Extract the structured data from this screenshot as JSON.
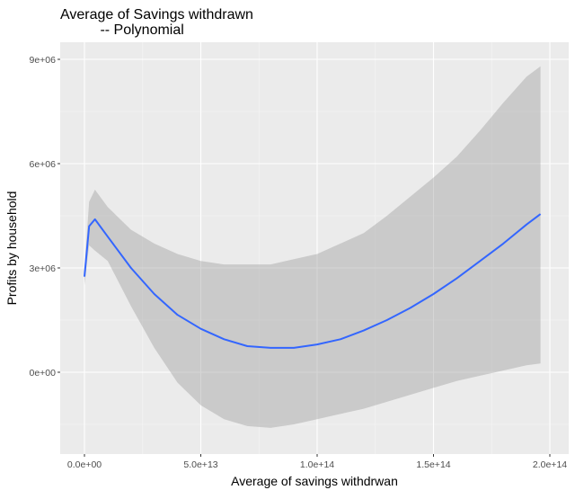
{
  "chart_data": {
    "type": "line",
    "title": "Average of Savings withdrawn",
    "subtitle": "          -- Polynomial",
    "xlabel": "Average of savings withdrwan",
    "ylabel": "Profits by household",
    "x_ticks": [
      {
        "value": 0,
        "label": "0.0e+00"
      },
      {
        "value": 50000000000000,
        "label": "5.0e+13"
      },
      {
        "value": 100000000000000,
        "label": "1.0e+14"
      },
      {
        "value": 150000000000000,
        "label": "1.5e+14"
      },
      {
        "value": 200000000000000,
        "label": "2.0e+14"
      }
    ],
    "y_ticks": [
      {
        "value": 0,
        "label": "0e+00"
      },
      {
        "value": 3000000,
        "label": "3e+06"
      },
      {
        "value": 6000000,
        "label": "6e+06"
      },
      {
        "value": 9000000,
        "label": "9e+06"
      }
    ],
    "xlim": [
      -10000000000000,
      206000000000000
    ],
    "ylim": [
      -2350000000,
      9250000
    ],
    "grid": true,
    "series": [
      {
        "color": "#3366ff",
        "x": [
          0,
          2000000000000,
          4500000000000,
          10000000000000,
          20000000000000,
          30000000000000,
          40000000000000,
          50000000000000,
          60000000000000,
          70000000000000,
          80000000000000,
          90000000000000,
          100000000000000,
          110000000000000,
          120000000000000,
          130000000000000,
          140000000000000,
          150000000000000,
          160000000000000,
          170000000000000,
          180000000000000,
          190000000000000,
          196000000000000
        ],
        "y": [
          2750000,
          4200000,
          4400000,
          3900000,
          3000000,
          2250000,
          1650000,
          1250000,
          950000,
          750000,
          700000,
          700000,
          800000,
          950000,
          1200000,
          1500000,
          1850000,
          2250000,
          2700000,
          3200000,
          3700000,
          4250000,
          4550000
        ],
        "ci_lower": [
          2500000,
          3650000,
          3500000,
          3200000,
          1900000,
          700000,
          -300000,
          -950000,
          -1350000,
          -1550000,
          -1600000,
          -1500000,
          -1350000,
          -1200000,
          -1050000,
          -850000,
          -650000,
          -450000,
          -250000,
          -100000,
          50000,
          200000,
          250000
        ],
        "ci_upper": [
          3000000,
          4900000,
          5250000,
          4750000,
          4100000,
          3700000,
          3400000,
          3200000,
          3100000,
          3100000,
          3100000,
          3250000,
          3400000,
          3700000,
          4000000,
          4500000,
          5050000,
          5600000,
          6200000,
          6950000,
          7750000,
          8500000,
          8800000
        ]
      }
    ]
  }
}
